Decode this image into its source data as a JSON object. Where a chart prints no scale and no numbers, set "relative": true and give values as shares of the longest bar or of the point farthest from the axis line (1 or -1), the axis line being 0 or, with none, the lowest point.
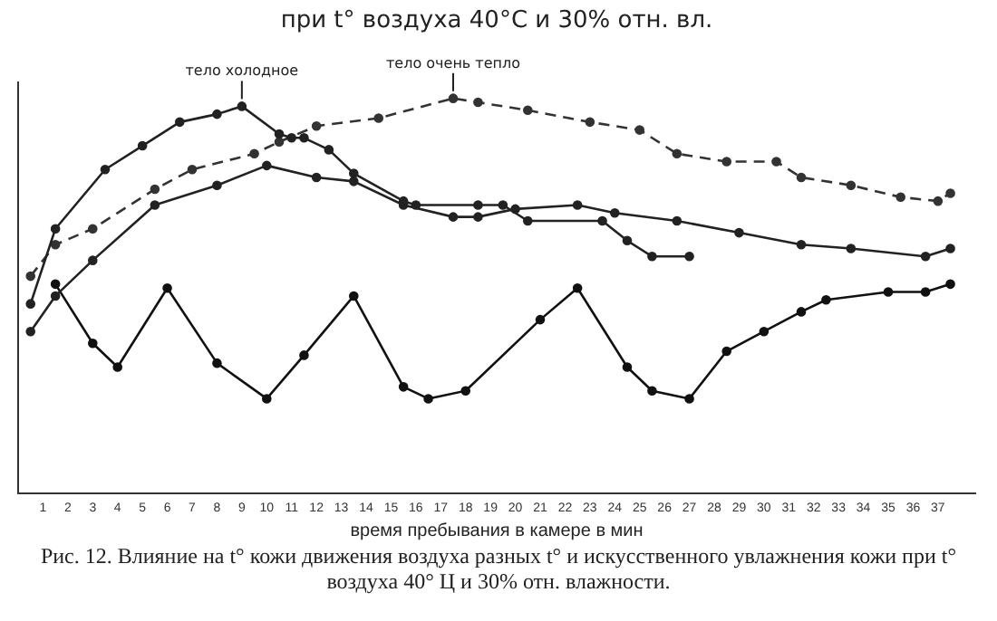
{
  "chart_data": {
    "type": "line",
    "relative": true,
    "title": "при t° воздуха 40°С и 30% отн. вл.",
    "xlabel": "время пребывания в камере в мин",
    "xlim": [
      0,
      38.5
    ],
    "xticks": [
      1,
      2,
      3,
      4,
      5,
      6,
      7,
      8,
      9,
      10,
      11,
      12,
      13,
      14,
      15,
      16,
      17,
      18,
      19,
      20,
      21,
      22,
      23,
      24,
      25,
      26,
      27,
      28,
      29,
      30,
      31,
      32,
      33,
      34,
      35,
      36,
      37
    ],
    "grid": false,
    "legend": false,
    "tick_labels": "x",
    "annotations": [
      {
        "text": "тело холодное",
        "x": 9,
        "y": 0.98
      },
      {
        "text": "тело очень тепло",
        "x": 17.5,
        "y": 1.0
      },
      "Рис. 12. Влияние на t° кожи движения воздуха разных t° и искусственного увлажнения кожи при t° воздуха 40° Ц и 30% отн. влажности."
    ],
    "series": [
      {
        "color": "#222222",
        "line_style": "solid",
        "marker": "circle",
        "x": [
          0.5,
          1.5,
          3.5,
          5,
          6.5,
          8,
          9,
          10.5,
          11,
          11.5,
          12.5,
          13.5,
          15.5,
          16,
          18.5,
          19.5,
          20.5,
          23.5,
          24.5,
          25.5,
          27
        ],
        "values": [
          0.48,
          0.67,
          0.82,
          0.88,
          0.94,
          0.96,
          0.98,
          0.91,
          0.9,
          0.9,
          0.87,
          0.81,
          0.74,
          0.73,
          0.73,
          0.73,
          0.69,
          0.69,
          0.64,
          0.6,
          0.6
        ]
      },
      {
        "color": "#333333",
        "line_style": "dashed",
        "marker": "circle",
        "x": [
          0.5,
          1.5,
          3,
          5.5,
          7,
          9.5,
          10.5,
          12,
          14.5,
          17.5,
          18.5,
          20.5,
          23,
          25,
          26.5,
          28.5,
          30.5,
          31.5,
          33.5,
          35.5,
          37,
          37.5
        ],
        "values": [
          0.55,
          0.63,
          0.67,
          0.77,
          0.82,
          0.86,
          0.89,
          0.93,
          0.95,
          1.0,
          0.99,
          0.97,
          0.94,
          0.92,
          0.86,
          0.84,
          0.84,
          0.8,
          0.78,
          0.75,
          0.74,
          0.76
        ]
      },
      {
        "color": "#222222",
        "line_style": "solid",
        "marker": "circle",
        "x": [
          0.5,
          1.5,
          3,
          5.5,
          8,
          10,
          12,
          13.5,
          15.5,
          17.5,
          18.5,
          20,
          22.5,
          24,
          26.5,
          29,
          31.5,
          33.5,
          36.5,
          37.5
        ],
        "values": [
          0.41,
          0.5,
          0.59,
          0.73,
          0.78,
          0.83,
          0.8,
          0.79,
          0.73,
          0.7,
          0.7,
          0.72,
          0.73,
          0.71,
          0.69,
          0.66,
          0.63,
          0.62,
          0.6,
          0.62
        ]
      },
      {
        "color": "#111111",
        "line_style": "solid",
        "marker": "circle",
        "x": [
          1.5,
          3,
          4,
          6,
          8,
          10,
          11.5,
          13.5,
          15.5,
          16.5,
          18,
          21,
          22.5,
          24.5,
          25.5,
          27,
          28.5,
          30,
          31.5,
          32.5,
          35,
          36.5,
          37.5
        ],
        "values": [
          0.53,
          0.38,
          0.32,
          0.52,
          0.33,
          0.24,
          0.35,
          0.5,
          0.27,
          0.24,
          0.26,
          0.44,
          0.52,
          0.32,
          0.26,
          0.24,
          0.36,
          0.41,
          0.46,
          0.49,
          0.51,
          0.51,
          0.53
        ]
      }
    ]
  }
}
